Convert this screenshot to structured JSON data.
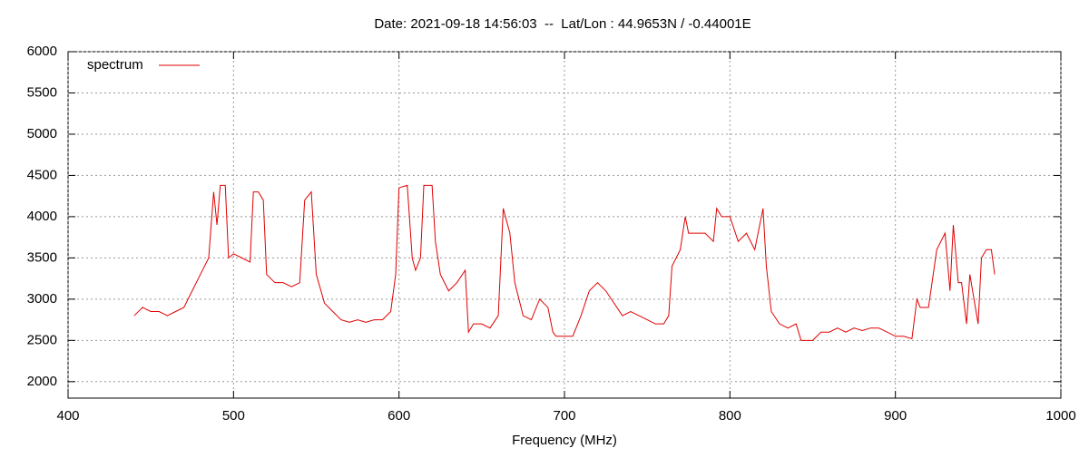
{
  "chart_data": {
    "type": "line",
    "title": "Date: 2021-09-18 14:56:03  --  Lat/Lon : 44.9653N / -0.44001E",
    "xlabel": "Frequency (MHz)",
    "x": [
      440,
      445,
      450,
      455,
      460,
      465,
      470,
      475,
      480,
      485,
      488,
      490,
      492,
      495,
      497,
      500,
      505,
      510,
      512,
      515,
      518,
      520,
      525,
      530,
      535,
      540,
      543,
      547,
      550,
      555,
      560,
      565,
      570,
      575,
      580,
      585,
      590,
      595,
      598,
      600,
      605,
      608,
      610,
      613,
      615,
      620,
      622,
      625,
      630,
      635,
      640,
      642,
      645,
      650,
      655,
      660,
      663,
      667,
      670,
      675,
      680,
      685,
      690,
      693,
      695,
      700,
      705,
      710,
      715,
      720,
      725,
      730,
      735,
      740,
      745,
      750,
      755,
      760,
      763,
      765,
      770,
      773,
      775,
      780,
      785,
      790,
      792,
      795,
      800,
      805,
      810,
      815,
      820,
      822,
      825,
      830,
      835,
      840,
      843,
      845,
      850,
      855,
      860,
      865,
      870,
      875,
      880,
      885,
      890,
      895,
      900,
      905,
      910,
      913,
      915,
      920,
      925,
      930,
      933,
      935,
      938,
      940,
      943,
      945,
      950,
      952,
      955,
      958,
      960
    ],
    "series": [
      {
        "name": "spectrum",
        "color": "#e00000",
        "values": [
          2800,
          2900,
          2850,
          2850,
          2800,
          2850,
          2900,
          3100,
          3300,
          3500,
          4300,
          3900,
          4380,
          4380,
          3500,
          3550,
          3500,
          3450,
          4300,
          4300,
          4200,
          3300,
          3200,
          3200,
          3150,
          3200,
          4200,
          4300,
          3300,
          2950,
          2850,
          2750,
          2720,
          2750,
          2720,
          2750,
          2750,
          2850,
          3300,
          4350,
          4380,
          3500,
          3350,
          3500,
          4380,
          4380,
          3700,
          3300,
          3100,
          3200,
          3350,
          2600,
          2700,
          2700,
          2650,
          2800,
          4100,
          3800,
          3200,
          2800,
          2750,
          3000,
          2900,
          2600,
          2550,
          2550,
          2550,
          2800,
          3100,
          3200,
          3100,
          2950,
          2800,
          2850,
          2800,
          2750,
          2700,
          2700,
          2800,
          3400,
          3600,
          4000,
          3800,
          3800,
          3800,
          3700,
          4100,
          4000,
          4000,
          3700,
          3800,
          3600,
          4100,
          3400,
          2850,
          2700,
          2650,
          2700,
          2500,
          2500,
          2500,
          2600,
          2600,
          2650,
          2600,
          2650,
          2620,
          2650,
          2650,
          2600,
          2550,
          2550,
          2520,
          3000,
          2900,
          2900,
          3600,
          3800,
          3100,
          3900,
          3200,
          3200,
          2700,
          3300,
          2700,
          3500,
          3600,
          3600,
          3300
        ]
      }
    ],
    "xlim": [
      400,
      1000
    ],
    "xticks": [
      400,
      500,
      600,
      700,
      800,
      900,
      1000
    ],
    "ylim": [
      1800,
      6000
    ],
    "yticks": [
      2000,
      2500,
      3000,
      3500,
      4000,
      4500,
      5000,
      5500,
      6000
    ],
    "grid": true,
    "legend": "top-left"
  }
}
